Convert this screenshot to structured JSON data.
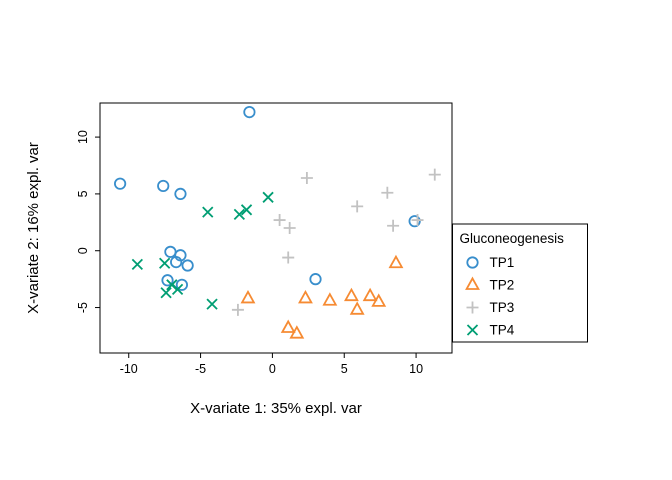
{
  "chart_data": {
    "type": "scatter",
    "title": "",
    "xlabel": "X-variate 1: 35% expl. var",
    "ylabel": "X-variate 2: 16% expl. var",
    "xlim": [
      -12,
      12.5
    ],
    "ylim": [
      -9,
      13
    ],
    "xticks": [
      -10,
      -5,
      0,
      5,
      10
    ],
    "yticks": [
      -5,
      0,
      5,
      10
    ],
    "grid": false,
    "legend": {
      "title": "Gluconeogenesis",
      "position": "right"
    },
    "series": [
      {
        "name": "TP1",
        "symbol": "circle",
        "color": "#388ECC",
        "points": [
          [
            -10.6,
            5.9
          ],
          [
            -7.6,
            5.7
          ],
          [
            -6.4,
            5.0
          ],
          [
            -1.6,
            12.2
          ],
          [
            -7.1,
            -0.1
          ],
          [
            -6.4,
            -0.4
          ],
          [
            -6.7,
            -1.0
          ],
          [
            -5.9,
            -1.3
          ],
          [
            -7.3,
            -2.6
          ],
          [
            -6.3,
            -3.0
          ],
          [
            3.0,
            -2.5
          ],
          [
            9.9,
            2.6
          ]
        ]
      },
      {
        "name": "TP2",
        "symbol": "triangle",
        "color": "#F68B33",
        "points": [
          [
            -1.7,
            -4.2
          ],
          [
            1.1,
            -6.8
          ],
          [
            1.7,
            -7.3
          ],
          [
            2.3,
            -4.2
          ],
          [
            4.0,
            -4.4
          ],
          [
            5.5,
            -4.0
          ],
          [
            5.9,
            -5.2
          ],
          [
            6.8,
            -4.0
          ],
          [
            7.4,
            -4.5
          ],
          [
            8.6,
            -1.1
          ]
        ]
      },
      {
        "name": "TP3",
        "symbol": "plus",
        "color": "#C2C2C2",
        "points": [
          [
            2.4,
            6.4
          ],
          [
            5.9,
            3.9
          ],
          [
            8.0,
            5.1
          ],
          [
            8.4,
            2.2
          ],
          [
            11.3,
            6.7
          ],
          [
            0.5,
            2.7
          ],
          [
            1.2,
            2.0
          ],
          [
            1.1,
            -0.6
          ],
          [
            -2.4,
            -5.2
          ],
          [
            10.1,
            2.7
          ]
        ]
      },
      {
        "name": "TP4",
        "symbol": "x",
        "color": "#009E73",
        "points": [
          [
            -9.4,
            -1.2
          ],
          [
            -7.5,
            -1.1
          ],
          [
            -4.5,
            3.4
          ],
          [
            -2.3,
            3.2
          ],
          [
            -1.8,
            3.6
          ],
          [
            -0.3,
            4.7
          ],
          [
            -7.0,
            -3.0
          ],
          [
            -6.6,
            -3.4
          ],
          [
            -7.4,
            -3.7
          ],
          [
            -4.2,
            -4.7
          ]
        ]
      }
    ]
  }
}
